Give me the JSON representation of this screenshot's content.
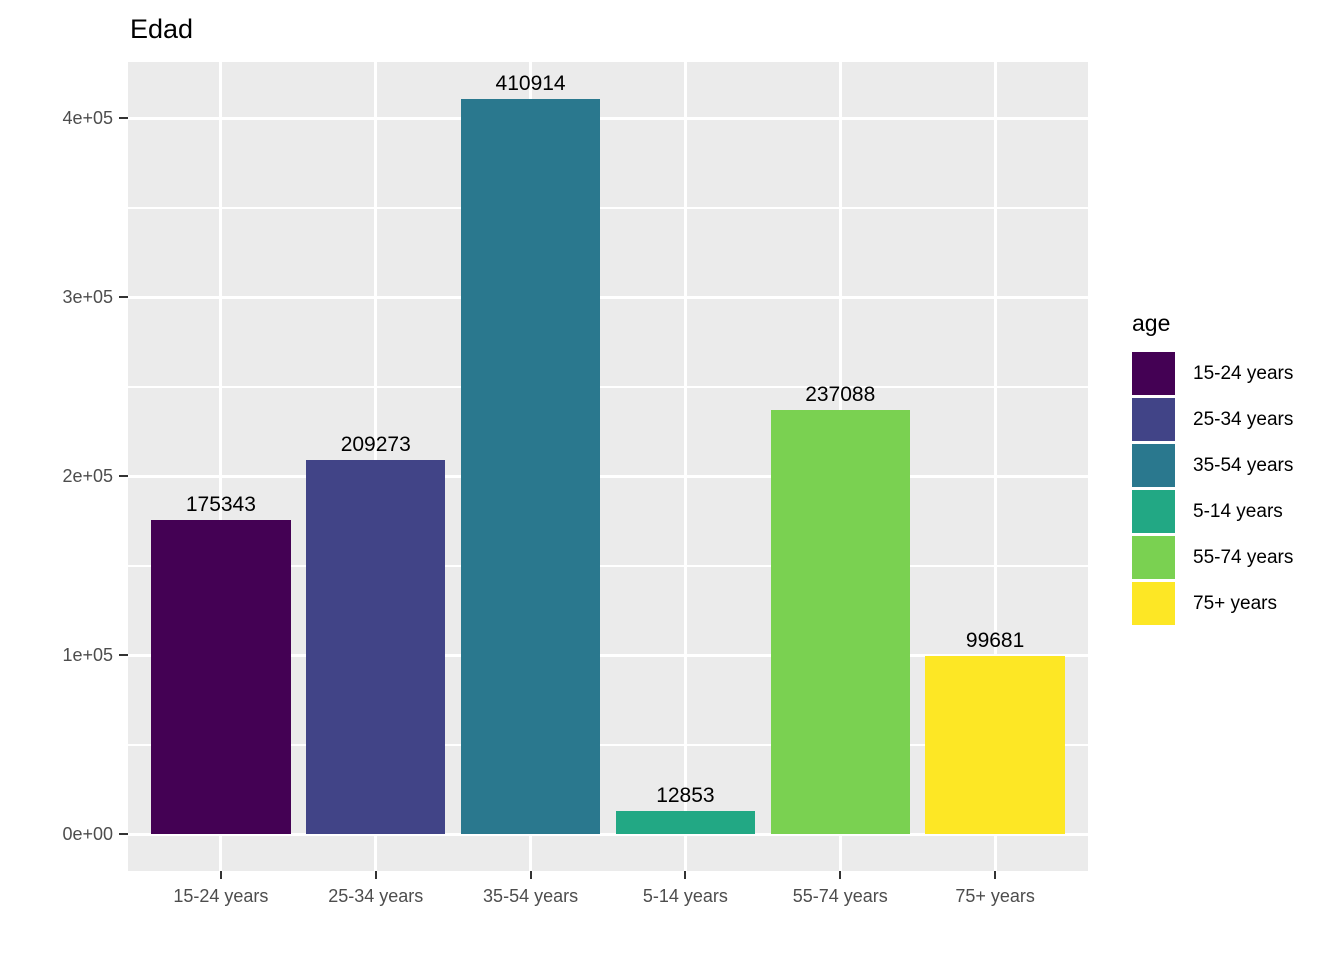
{
  "chart_data": {
    "type": "bar",
    "title": "Edad",
    "xlabel": "",
    "ylabel": "",
    "categories": [
      "15-24 years",
      "25-34 years",
      "35-54 years",
      "5-14 years",
      "55-74 years",
      "75+ years"
    ],
    "values": [
      175343,
      209273,
      410914,
      12853,
      237088,
      99681
    ],
    "value_labels": [
      "175343",
      "209273",
      "410914",
      "12853",
      "237088",
      "99681"
    ],
    "bar_colors": [
      "#440154",
      "#414487",
      "#2A788E",
      "#22A884",
      "#7AD151",
      "#FDE725"
    ],
    "ylim": [
      -20546,
      431460
    ],
    "y_axis": {
      "ticks": [
        {
          "value": 0,
          "label": "0e+00"
        },
        {
          "value": 100000,
          "label": "1e+05"
        },
        {
          "value": 200000,
          "label": "2e+05"
        },
        {
          "value": 300000,
          "label": "3e+05"
        },
        {
          "value": 400000,
          "label": "4e+05"
        }
      ],
      "minor_ticks": [
        50000,
        150000,
        250000,
        350000
      ]
    },
    "grid": true,
    "legend": {
      "title": "age",
      "position": "right",
      "entries": [
        {
          "label": "15-24 years",
          "color": "#440154"
        },
        {
          "label": "25-34 years",
          "color": "#414487"
        },
        {
          "label": "35-54 years",
          "color": "#2A788E"
        },
        {
          "label": "5-14 years",
          "color": "#22A884"
        },
        {
          "label": "55-74 years",
          "color": "#7AD151"
        },
        {
          "label": "75+ years",
          "color": "#FDE725"
        }
      ]
    },
    "colors": {
      "panel_background": "#EBEBEB",
      "gridline": "#FFFFFF",
      "axis_text": "#4D4D4D",
      "tick_mark": "#333333",
      "title_text": "#000000"
    }
  }
}
